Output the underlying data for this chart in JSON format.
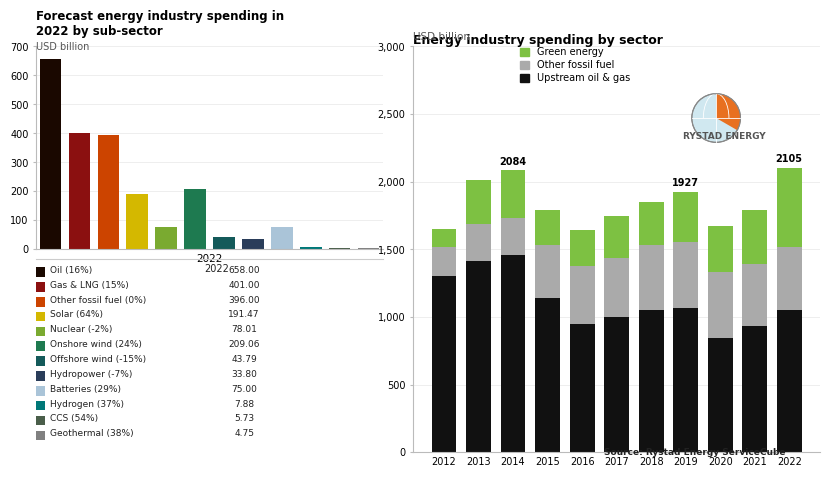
{
  "left_chart": {
    "title": "Forecast energy industry spending in\n2022 by sub-sector",
    "subtitle": "USD billion",
    "categories": [
      "Oil (16%)",
      "Gas & LNG (15%)",
      "Other fossil fuel (0%)",
      "Solar (64%)",
      "Nuclear (-2%)",
      "Onshore wind (24%)",
      "Offshore wind (-15%)",
      "Hydropower (-7%)",
      "Batteries (29%)",
      "Hydrogen (37%)",
      "CCS (54%)",
      "Geothermal (38%)"
    ],
    "values": [
      658.0,
      401.0,
      396.0,
      191.47,
      78.01,
      209.06,
      43.79,
      33.8,
      75.0,
      7.88,
      5.73,
      4.75
    ],
    "colors": [
      "#1a0800",
      "#8b1010",
      "#cc4400",
      "#d4b800",
      "#7aaa30",
      "#1e7a50",
      "#145a5a",
      "#2a3d5a",
      "#aac4d8",
      "#007878",
      "#4a5e4a",
      "#808080"
    ],
    "ylim": [
      0,
      700
    ],
    "yticks": [
      0,
      100,
      200,
      300,
      400,
      500,
      600,
      700
    ],
    "table_values": [
      658.0,
      401.0,
      396.0,
      191.47,
      78.01,
      209.06,
      43.79,
      33.8,
      75.0,
      7.88,
      5.73,
      4.75
    ]
  },
  "right_chart": {
    "title": "Energy industry spending by sector",
    "subtitle": "USD billion",
    "years": [
      2012,
      2013,
      2014,
      2015,
      2016,
      2017,
      2018,
      2019,
      2020,
      2021,
      2022
    ],
    "upstream_oil_gas": [
      1305,
      1415,
      1455,
      1140,
      950,
      1000,
      1050,
      1065,
      845,
      930,
      1050
    ],
    "other_fossil_fuel": [
      215,
      270,
      275,
      390,
      430,
      435,
      480,
      490,
      490,
      460,
      465
    ],
    "green_energy": [
      130,
      325,
      354,
      260,
      260,
      315,
      320,
      372,
      335,
      400,
      590
    ],
    "totals_labeled": {
      "2014": 2084,
      "2019": 1927,
      "2022": 2105
    },
    "colors": {
      "upstream": "#111111",
      "fossil": "#aaaaaa",
      "green": "#7dc142"
    },
    "ylim": [
      0,
      3000
    ],
    "yticks": [
      0,
      500,
      1000,
      1500,
      2000,
      2500,
      3000
    ],
    "source": "Source: Rystad Energy ServiceCube"
  },
  "background_color": "#ffffff"
}
